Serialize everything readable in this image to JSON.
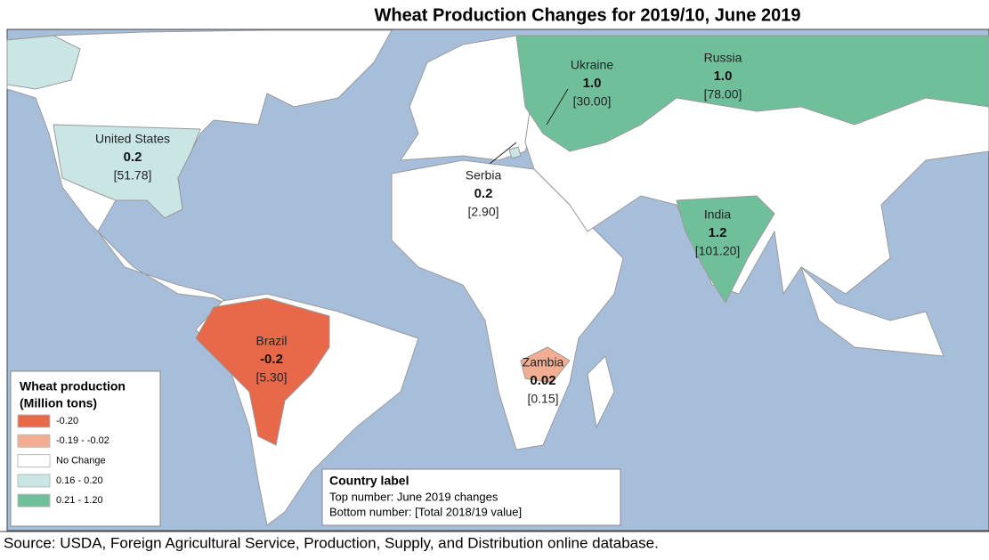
{
  "title": "Wheat Production Changes for 2019/10, June 2019",
  "countries": [
    {
      "name": "United States",
      "change": "0.2",
      "total": "[51.78]"
    },
    {
      "name": "Ukraine",
      "change": "1.0",
      "total": "[30.00]"
    },
    {
      "name": "Russia",
      "change": "1.0",
      "total": "[78.00]"
    },
    {
      "name": "Serbia",
      "change": "0.2",
      "total": "[2.90]"
    },
    {
      "name": "India",
      "change": "1.2",
      "total": "[101.20]"
    },
    {
      "name": "Brazil",
      "change": "-0.2",
      "total": "[5.30]"
    },
    {
      "name": "Zambia",
      "change": "0.02",
      "total": "[0.15]"
    }
  ],
  "legend": {
    "title": [
      "Wheat production",
      "(Million tons)"
    ],
    "items": [
      {
        "label": "-0.20",
        "color": "#e8694a"
      },
      {
        "label": "-0.19 - -0.02",
        "color": "#f2ae93"
      },
      {
        "label": "No Change",
        "color": "#ffffff"
      },
      {
        "label": "0.16 - 0.20",
        "color": "#c9e6e4"
      },
      {
        "label": "0.21 - 1.20",
        "color": "#6fbf9b"
      }
    ]
  },
  "note": {
    "title": "Country label",
    "lines": [
      "Top number: June 2019 changes",
      "Bottom number: [Total 2018/19 value]"
    ]
  },
  "source": "Source: USDA, Foreign Agricultural Service, Production, Supply, and Distribution online database."
}
